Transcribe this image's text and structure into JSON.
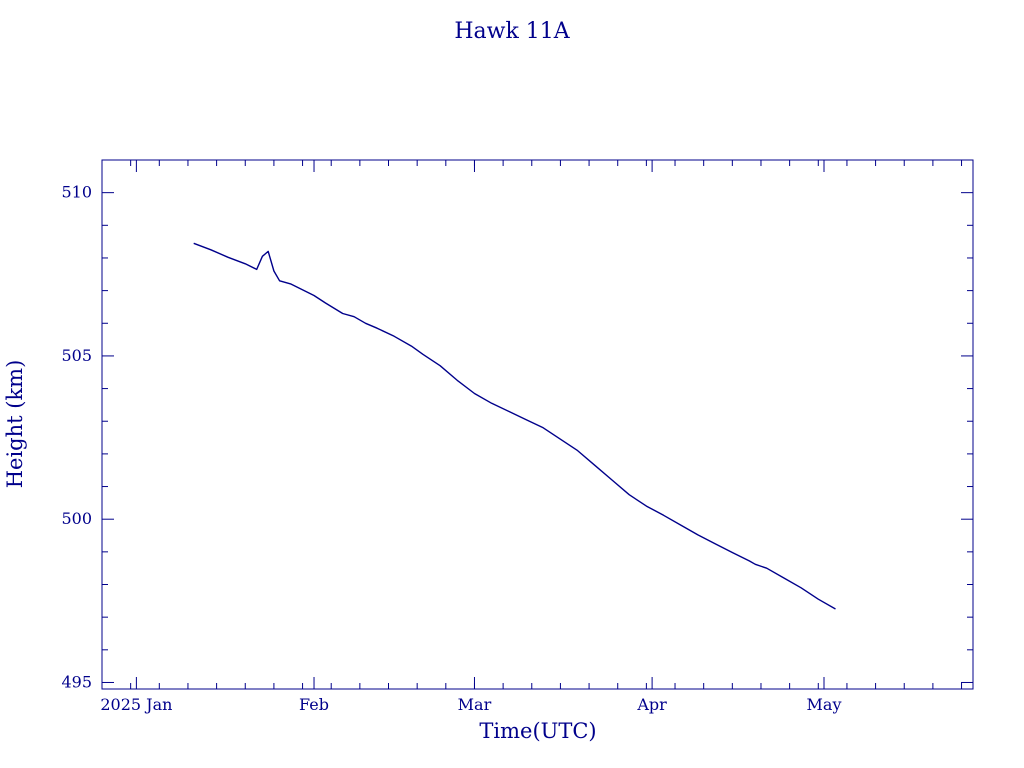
{
  "chart_data": {
    "type": "line",
    "title": "Hawk 11A",
    "xlabel": "Time(UTC)",
    "ylabel": "Height (km)",
    "x_tick_labels": [
      {
        "date": "2025-01-01",
        "label": "2025 Jan"
      },
      {
        "date": "2025-02-01",
        "label": "Feb"
      },
      {
        "date": "2025-03-01",
        "label": "Mar"
      },
      {
        "date": "2025-04-01",
        "label": "Apr"
      },
      {
        "date": "2025-05-01",
        "label": "May"
      }
    ],
    "y_tick_labels": [
      "495",
      "500",
      "505",
      "510"
    ],
    "xlim": [
      "2024-12-26",
      "2025-05-27"
    ],
    "ylim": [
      494.8,
      511
    ],
    "grid": false,
    "series": [
      {
        "x": [
          "2025-01-11",
          "2025-01-14",
          "2025-01-17",
          "2025-01-20",
          "2025-01-22",
          "2025-01-23",
          "2025-01-24",
          "2025-01-25",
          "2025-01-26",
          "2025-01-28",
          "2025-02-01",
          "2025-02-03",
          "2025-02-06",
          "2025-02-08",
          "2025-02-10",
          "2025-02-12",
          "2025-02-15",
          "2025-02-18",
          "2025-02-20",
          "2025-02-23",
          "2025-02-26",
          "2025-03-01",
          "2025-03-04",
          "2025-03-07",
          "2025-03-10",
          "2025-03-13",
          "2025-03-16",
          "2025-03-19",
          "2025-03-22",
          "2025-03-25",
          "2025-03-28",
          "2025-03-31",
          "2025-04-03",
          "2025-04-06",
          "2025-04-09",
          "2025-04-12",
          "2025-04-15",
          "2025-04-18",
          "2025-04-19",
          "2025-04-21",
          "2025-04-24",
          "2025-04-27",
          "2025-04-30",
          "2025-05-03"
        ],
        "y": [
          508.45,
          508.25,
          508.02,
          507.82,
          507.65,
          508.05,
          508.2,
          507.6,
          507.3,
          507.2,
          506.85,
          506.62,
          506.3,
          506.2,
          506.0,
          505.85,
          505.6,
          505.3,
          505.05,
          504.7,
          504.25,
          503.85,
          503.55,
          503.3,
          503.05,
          502.8,
          502.45,
          502.1,
          501.65,
          501.2,
          500.75,
          500.4,
          500.12,
          499.82,
          499.52,
          499.25,
          498.98,
          498.72,
          498.62,
          498.5,
          498.2,
          497.9,
          497.55,
          497.25
        ]
      }
    ]
  }
}
